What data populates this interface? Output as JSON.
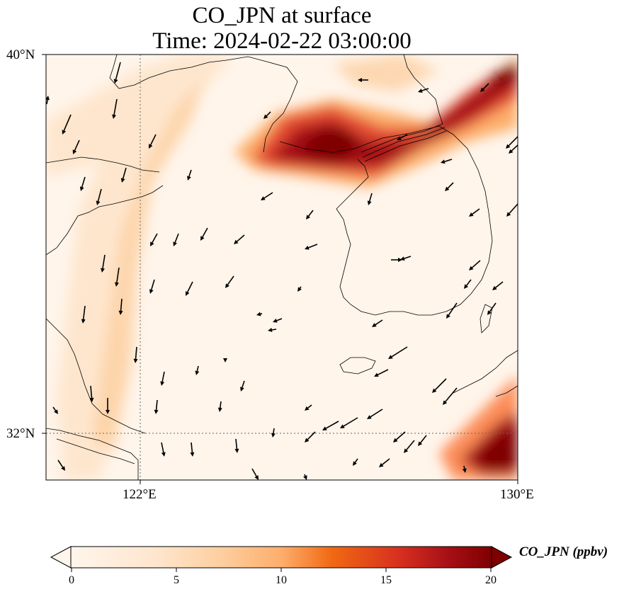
{
  "title_line1": "CO_JPN at surface",
  "title_line2": "Time: 2024-02-22 03:00:00",
  "axes": {
    "lat_labels": [
      "40°N",
      "32°N"
    ],
    "lon_labels": [
      "122°E",
      "130°E"
    ],
    "lat_range": [
      31,
      40
    ],
    "lon_range": [
      120,
      130
    ],
    "gridlines": "dotted at 122°E and 32°N"
  },
  "colorbar": {
    "label": "CO_JPN (ppbv)",
    "ticks": [
      "0",
      "5",
      "10",
      "15",
      "20"
    ],
    "min": 0,
    "max": 20,
    "extend": "both",
    "colors": [
      "#fff5eb",
      "#fdd4a6",
      "#fdae6b",
      "#f16913",
      "#d7301f",
      "#a50f15",
      "#7f0000"
    ]
  },
  "map_features": [
    "coastlines",
    "wind vectors",
    "CO concentration field"
  ]
}
